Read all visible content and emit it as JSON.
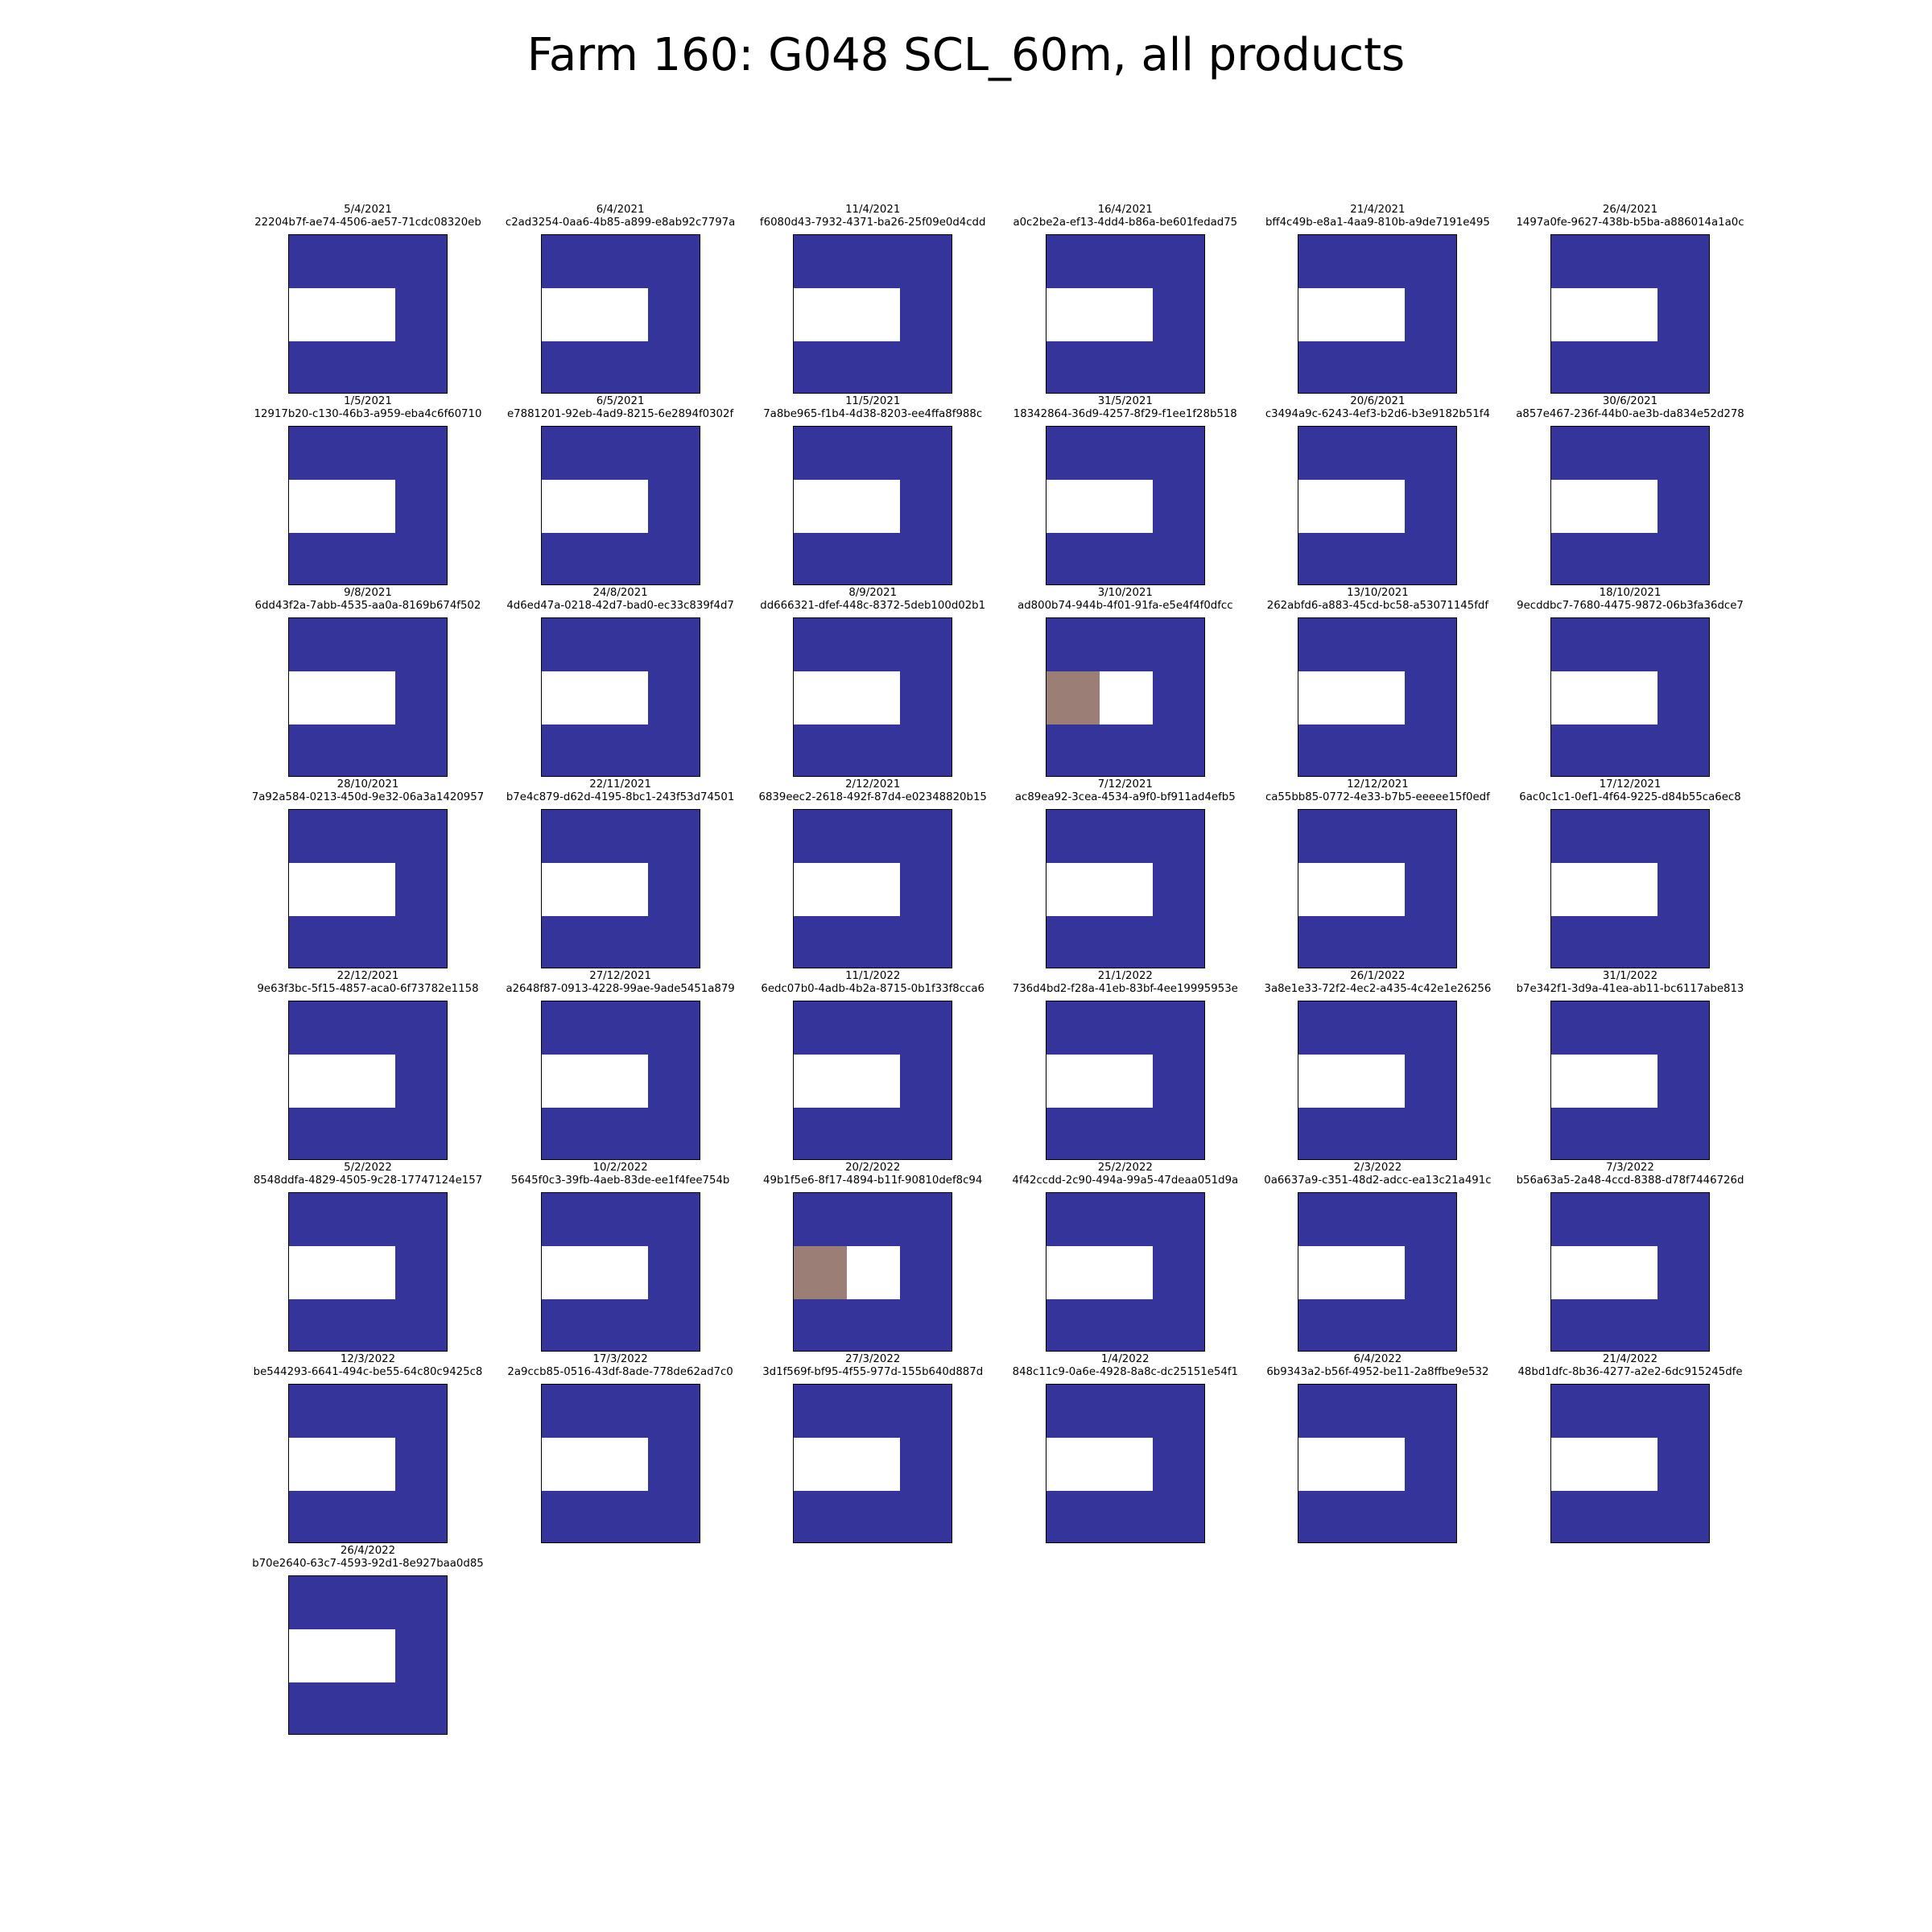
{
  "figure": {
    "title": "Farm 160: G048 SCL_60m, all products"
  },
  "chart_data": {
    "type": "heatmap",
    "title": "Farm 160: G048 SCL_60m, all products",
    "grid_shape": [
      3,
      3
    ],
    "colors": {
      "water": "#35349a",
      "no_data": "#ffffff",
      "cloud_shadow": "#9b7f77"
    },
    "panels": [
      {
        "date": "5/4/2021",
        "id": "22204b7f-ae74-4506-ae57-71cdc08320eb",
        "cells": [
          [
            "water",
            "water",
            "water"
          ],
          [
            "no_data",
            "no_data",
            "water"
          ],
          [
            "water",
            "water",
            "water"
          ]
        ]
      },
      {
        "date": "6/4/2021",
        "id": "c2ad3254-0aa6-4b85-a899-e8ab92c7797a",
        "cells": [
          [
            "water",
            "water",
            "water"
          ],
          [
            "no_data",
            "no_data",
            "water"
          ],
          [
            "water",
            "water",
            "water"
          ]
        ]
      },
      {
        "date": "11/4/2021",
        "id": "f6080d43-7932-4371-ba26-25f09e0d4cdd",
        "cells": [
          [
            "water",
            "water",
            "water"
          ],
          [
            "no_data",
            "no_data",
            "water"
          ],
          [
            "water",
            "water",
            "water"
          ]
        ]
      },
      {
        "date": "16/4/2021",
        "id": "a0c2be2a-ef13-4dd4-b86a-be601fedad75",
        "cells": [
          [
            "water",
            "water",
            "water"
          ],
          [
            "no_data",
            "no_data",
            "water"
          ],
          [
            "water",
            "water",
            "water"
          ]
        ]
      },
      {
        "date": "21/4/2021",
        "id": "bff4c49b-e8a1-4aa9-810b-a9de7191e495",
        "cells": [
          [
            "water",
            "water",
            "water"
          ],
          [
            "no_data",
            "no_data",
            "water"
          ],
          [
            "water",
            "water",
            "water"
          ]
        ]
      },
      {
        "date": "26/4/2021",
        "id": "1497a0fe-9627-438b-b5ba-a886014a1a0c",
        "cells": [
          [
            "water",
            "water",
            "water"
          ],
          [
            "no_data",
            "no_data",
            "water"
          ],
          [
            "water",
            "water",
            "water"
          ]
        ]
      },
      {
        "date": "1/5/2021",
        "id": "12917b20-c130-46b3-a959-eba4c6f60710",
        "cells": [
          [
            "water",
            "water",
            "water"
          ],
          [
            "no_data",
            "no_data",
            "water"
          ],
          [
            "water",
            "water",
            "water"
          ]
        ]
      },
      {
        "date": "6/5/2021",
        "id": "e7881201-92eb-4ad9-8215-6e2894f0302f",
        "cells": [
          [
            "water",
            "water",
            "water"
          ],
          [
            "no_data",
            "no_data",
            "water"
          ],
          [
            "water",
            "water",
            "water"
          ]
        ]
      },
      {
        "date": "11/5/2021",
        "id": "7a8be965-f1b4-4d38-8203-ee4ffa8f988c",
        "cells": [
          [
            "water",
            "water",
            "water"
          ],
          [
            "no_data",
            "no_data",
            "water"
          ],
          [
            "water",
            "water",
            "water"
          ]
        ]
      },
      {
        "date": "31/5/2021",
        "id": "18342864-36d9-4257-8f29-f1ee1f28b518",
        "cells": [
          [
            "water",
            "water",
            "water"
          ],
          [
            "no_data",
            "no_data",
            "water"
          ],
          [
            "water",
            "water",
            "water"
          ]
        ]
      },
      {
        "date": "20/6/2021",
        "id": "c3494a9c-6243-4ef3-b2d6-b3e9182b51f4",
        "cells": [
          [
            "water",
            "water",
            "water"
          ],
          [
            "no_data",
            "no_data",
            "water"
          ],
          [
            "water",
            "water",
            "water"
          ]
        ]
      },
      {
        "date": "30/6/2021",
        "id": "a857e467-236f-44b0-ae3b-da834e52d278",
        "cells": [
          [
            "water",
            "water",
            "water"
          ],
          [
            "no_data",
            "no_data",
            "water"
          ],
          [
            "water",
            "water",
            "water"
          ]
        ]
      },
      {
        "date": "9/8/2021",
        "id": "6dd43f2a-7abb-4535-aa0a-8169b674f502",
        "cells": [
          [
            "water",
            "water",
            "water"
          ],
          [
            "no_data",
            "no_data",
            "water"
          ],
          [
            "water",
            "water",
            "water"
          ]
        ]
      },
      {
        "date": "24/8/2021",
        "id": "4d6ed47a-0218-42d7-bad0-ec33c839f4d7",
        "cells": [
          [
            "water",
            "water",
            "water"
          ],
          [
            "no_data",
            "no_data",
            "water"
          ],
          [
            "water",
            "water",
            "water"
          ]
        ]
      },
      {
        "date": "8/9/2021",
        "id": "dd666321-dfef-448c-8372-5deb100d02b1",
        "cells": [
          [
            "water",
            "water",
            "water"
          ],
          [
            "no_data",
            "no_data",
            "water"
          ],
          [
            "water",
            "water",
            "water"
          ]
        ]
      },
      {
        "date": "3/10/2021",
        "id": "ad800b74-944b-4f01-91fa-e5e4f4f0dfcc",
        "cells": [
          [
            "water",
            "water",
            "water"
          ],
          [
            "cloud_shadow",
            "no_data",
            "water"
          ],
          [
            "water",
            "water",
            "water"
          ]
        ]
      },
      {
        "date": "13/10/2021",
        "id": "262abfd6-a883-45cd-bc58-a53071145fdf",
        "cells": [
          [
            "water",
            "water",
            "water"
          ],
          [
            "no_data",
            "no_data",
            "water"
          ],
          [
            "water",
            "water",
            "water"
          ]
        ]
      },
      {
        "date": "18/10/2021",
        "id": "9ecddbc7-7680-4475-9872-06b3fa36dce7",
        "cells": [
          [
            "water",
            "water",
            "water"
          ],
          [
            "no_data",
            "no_data",
            "water"
          ],
          [
            "water",
            "water",
            "water"
          ]
        ]
      },
      {
        "date": "28/10/2021",
        "id": "7a92a584-0213-450d-9e32-06a3a1420957",
        "cells": [
          [
            "water",
            "water",
            "water"
          ],
          [
            "no_data",
            "no_data",
            "water"
          ],
          [
            "water",
            "water",
            "water"
          ]
        ]
      },
      {
        "date": "22/11/2021",
        "id": "b7e4c879-d62d-4195-8bc1-243f53d74501",
        "cells": [
          [
            "water",
            "water",
            "water"
          ],
          [
            "no_data",
            "no_data",
            "water"
          ],
          [
            "water",
            "water",
            "water"
          ]
        ]
      },
      {
        "date": "2/12/2021",
        "id": "6839eec2-2618-492f-87d4-e02348820b15",
        "cells": [
          [
            "water",
            "water",
            "water"
          ],
          [
            "no_data",
            "no_data",
            "water"
          ],
          [
            "water",
            "water",
            "water"
          ]
        ]
      },
      {
        "date": "7/12/2021",
        "id": "ac89ea92-3cea-4534-a9f0-bf911ad4efb5",
        "cells": [
          [
            "water",
            "water",
            "water"
          ],
          [
            "no_data",
            "no_data",
            "water"
          ],
          [
            "water",
            "water",
            "water"
          ]
        ]
      },
      {
        "date": "12/12/2021",
        "id": "ca55bb85-0772-4e33-b7b5-eeeee15f0edf",
        "cells": [
          [
            "water",
            "water",
            "water"
          ],
          [
            "no_data",
            "no_data",
            "water"
          ],
          [
            "water",
            "water",
            "water"
          ]
        ]
      },
      {
        "date": "17/12/2021",
        "id": "6ac0c1c1-0ef1-4f64-9225-d84b55ca6ec8",
        "cells": [
          [
            "water",
            "water",
            "water"
          ],
          [
            "no_data",
            "no_data",
            "water"
          ],
          [
            "water",
            "water",
            "water"
          ]
        ]
      },
      {
        "date": "22/12/2021",
        "id": "9e63f3bc-5f15-4857-aca0-6f73782e1158",
        "cells": [
          [
            "water",
            "water",
            "water"
          ],
          [
            "no_data",
            "no_data",
            "water"
          ],
          [
            "water",
            "water",
            "water"
          ]
        ]
      },
      {
        "date": "27/12/2021",
        "id": "a2648f87-0913-4228-99ae-9ade5451a879",
        "cells": [
          [
            "water",
            "water",
            "water"
          ],
          [
            "no_data",
            "no_data",
            "water"
          ],
          [
            "water",
            "water",
            "water"
          ]
        ]
      },
      {
        "date": "11/1/2022",
        "id": "6edc07b0-4adb-4b2a-8715-0b1f33f8cca6",
        "cells": [
          [
            "water",
            "water",
            "water"
          ],
          [
            "no_data",
            "no_data",
            "water"
          ],
          [
            "water",
            "water",
            "water"
          ]
        ]
      },
      {
        "date": "21/1/2022",
        "id": "736d4bd2-f28a-41eb-83bf-4ee19995953e",
        "cells": [
          [
            "water",
            "water",
            "water"
          ],
          [
            "no_data",
            "no_data",
            "water"
          ],
          [
            "water",
            "water",
            "water"
          ]
        ]
      },
      {
        "date": "26/1/2022",
        "id": "3a8e1e33-72f2-4ec2-a435-4c42e1e26256",
        "cells": [
          [
            "water",
            "water",
            "water"
          ],
          [
            "no_data",
            "no_data",
            "water"
          ],
          [
            "water",
            "water",
            "water"
          ]
        ]
      },
      {
        "date": "31/1/2022",
        "id": "b7e342f1-3d9a-41ea-ab11-bc6117abe813",
        "cells": [
          [
            "water",
            "water",
            "water"
          ],
          [
            "no_data",
            "no_data",
            "water"
          ],
          [
            "water",
            "water",
            "water"
          ]
        ]
      },
      {
        "date": "5/2/2022",
        "id": "8548ddfa-4829-4505-9c28-17747124e157",
        "cells": [
          [
            "water",
            "water",
            "water"
          ],
          [
            "no_data",
            "no_data",
            "water"
          ],
          [
            "water",
            "water",
            "water"
          ]
        ]
      },
      {
        "date": "10/2/2022",
        "id": "5645f0c3-39fb-4aeb-83de-ee1f4fee754b",
        "cells": [
          [
            "water",
            "water",
            "water"
          ],
          [
            "no_data",
            "no_data",
            "water"
          ],
          [
            "water",
            "water",
            "water"
          ]
        ]
      },
      {
        "date": "20/2/2022",
        "id": "49b1f5e6-8f17-4894-b11f-90810def8c94",
        "cells": [
          [
            "water",
            "water",
            "water"
          ],
          [
            "cloud_shadow",
            "no_data",
            "water"
          ],
          [
            "water",
            "water",
            "water"
          ]
        ]
      },
      {
        "date": "25/2/2022",
        "id": "4f42ccdd-2c90-494a-99a5-47deaa051d9a",
        "cells": [
          [
            "water",
            "water",
            "water"
          ],
          [
            "no_data",
            "no_data",
            "water"
          ],
          [
            "water",
            "water",
            "water"
          ]
        ]
      },
      {
        "date": "2/3/2022",
        "id": "0a6637a9-c351-48d2-adcc-ea13c21a491c",
        "cells": [
          [
            "water",
            "water",
            "water"
          ],
          [
            "no_data",
            "no_data",
            "water"
          ],
          [
            "water",
            "water",
            "water"
          ]
        ]
      },
      {
        "date": "7/3/2022",
        "id": "b56a63a5-2a48-4ccd-8388-d78f7446726d",
        "cells": [
          [
            "water",
            "water",
            "water"
          ],
          [
            "no_data",
            "no_data",
            "water"
          ],
          [
            "water",
            "water",
            "water"
          ]
        ]
      },
      {
        "date": "12/3/2022",
        "id": "be544293-6641-494c-be55-64c80c9425c8",
        "cells": [
          [
            "water",
            "water",
            "water"
          ],
          [
            "no_data",
            "no_data",
            "water"
          ],
          [
            "water",
            "water",
            "water"
          ]
        ]
      },
      {
        "date": "17/3/2022",
        "id": "2a9ccb85-0516-43df-8ade-778de62ad7c0",
        "cells": [
          [
            "water",
            "water",
            "water"
          ],
          [
            "no_data",
            "no_data",
            "water"
          ],
          [
            "water",
            "water",
            "water"
          ]
        ]
      },
      {
        "date": "27/3/2022",
        "id": "3d1f569f-bf95-4f55-977d-155b640d887d",
        "cells": [
          [
            "water",
            "water",
            "water"
          ],
          [
            "no_data",
            "no_data",
            "water"
          ],
          [
            "water",
            "water",
            "water"
          ]
        ]
      },
      {
        "date": "1/4/2022",
        "id": "848c11c9-0a6e-4928-8a8c-dc25151e54f1",
        "cells": [
          [
            "water",
            "water",
            "water"
          ],
          [
            "no_data",
            "no_data",
            "water"
          ],
          [
            "water",
            "water",
            "water"
          ]
        ]
      },
      {
        "date": "6/4/2022",
        "id": "6b9343a2-b56f-4952-be11-2a8ffbe9e532",
        "cells": [
          [
            "water",
            "water",
            "water"
          ],
          [
            "no_data",
            "no_data",
            "water"
          ],
          [
            "water",
            "water",
            "water"
          ]
        ]
      },
      {
        "date": "21/4/2022",
        "id": "48bd1dfc-8b36-4277-a2e2-6dc915245dfe",
        "cells": [
          [
            "water",
            "water",
            "water"
          ],
          [
            "no_data",
            "no_data",
            "water"
          ],
          [
            "water",
            "water",
            "water"
          ]
        ]
      },
      {
        "date": "26/4/2022",
        "id": "b70e2640-63c7-4593-92d1-8e927baa0d85",
        "cells": [
          [
            "water",
            "water",
            "water"
          ],
          [
            "no_data",
            "no_data",
            "water"
          ],
          [
            "water",
            "water",
            "water"
          ]
        ]
      }
    ]
  }
}
